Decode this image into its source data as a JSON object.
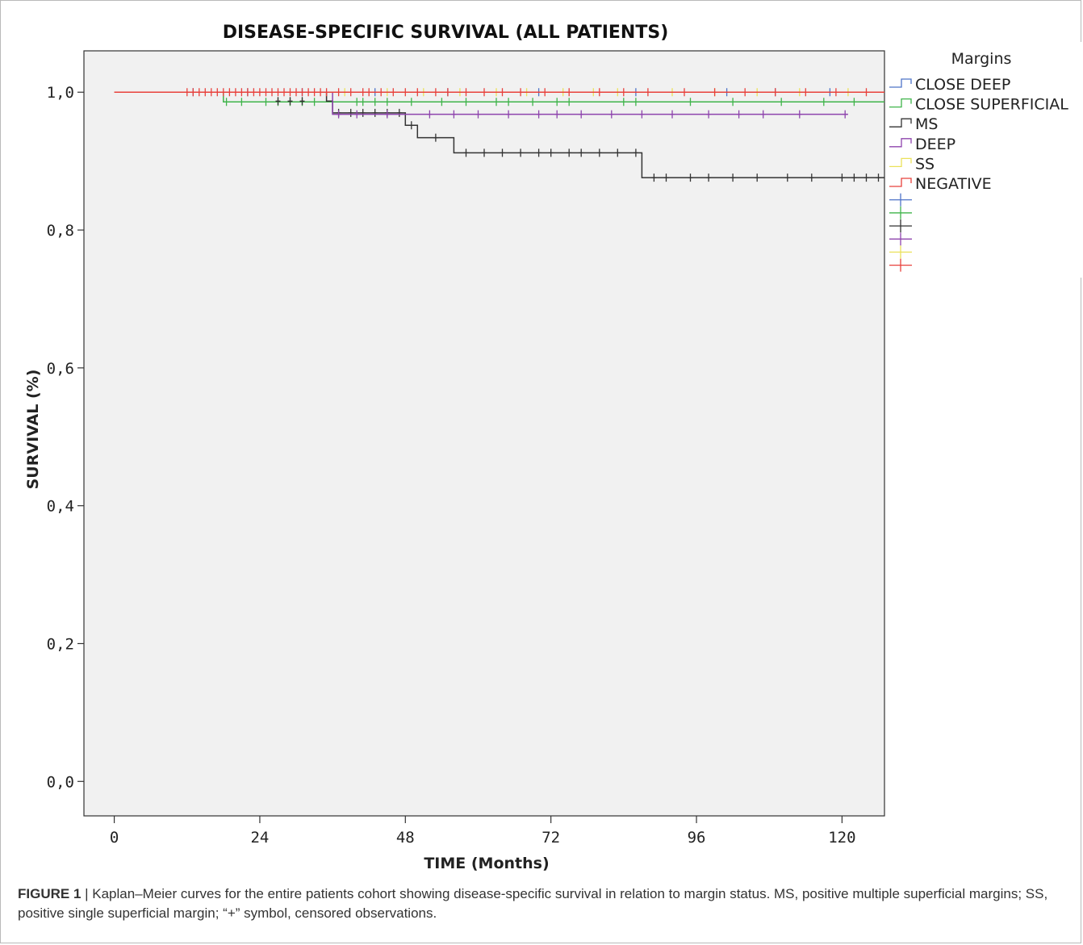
{
  "chart_data": {
    "type": "line",
    "title": "DISEASE-SPECIFIC SURVIVAL (ALL PATIENTS)",
    "xlabel": "TIME (Months)",
    "ylabel": "SURVIVAL (%)",
    "xlim": [
      -5,
      127
    ],
    "ylim": [
      -0.05,
      1.06
    ],
    "x_ticks": [
      0,
      24,
      48,
      72,
      96,
      120
    ],
    "x_tick_labels": [
      "0",
      "24",
      "48",
      "72",
      "96",
      "120"
    ],
    "y_ticks": [
      0.0,
      0.2,
      0.4,
      0.6,
      0.8,
      1.0
    ],
    "y_tick_labels": [
      "0,0",
      "0,2",
      "0,4",
      "0,6",
      "0,8",
      "1,0"
    ],
    "grid": false,
    "legend": {
      "title": "Margins",
      "position": "right"
    },
    "series": [
      {
        "name": "CLOSE DEEP",
        "color": "#4e73c8",
        "steps": [
          [
            0,
            1.0
          ],
          [
            127,
            1.0
          ]
        ],
        "censored": [
          [
            13,
            1.0
          ],
          [
            22,
            1.0
          ],
          [
            31,
            1.0
          ],
          [
            43,
            1.0
          ],
          [
            55,
            1.0
          ],
          [
            70,
            1.0
          ],
          [
            86,
            1.0
          ],
          [
            101,
            1.0
          ],
          [
            109,
            1.0
          ],
          [
            118,
            1.0
          ]
        ]
      },
      {
        "name": "CLOSE SUPERFICIAL",
        "color": "#3fb44a",
        "steps": [
          [
            0,
            1.0
          ],
          [
            18,
            1.0
          ],
          [
            18,
            0.986
          ],
          [
            127,
            0.986
          ]
        ],
        "censored": [
          [
            18.5,
            0.986
          ],
          [
            21,
            0.986
          ],
          [
            25,
            0.986
          ],
          [
            27,
            0.986
          ],
          [
            29,
            0.986
          ],
          [
            31,
            0.986
          ],
          [
            33,
            0.986
          ],
          [
            40,
            0.986
          ],
          [
            41,
            0.986
          ],
          [
            43,
            0.986
          ],
          [
            45,
            0.986
          ],
          [
            49,
            0.986
          ],
          [
            54,
            0.986
          ],
          [
            58,
            0.986
          ],
          [
            63,
            0.986
          ],
          [
            65,
            0.986
          ],
          [
            69,
            0.986
          ],
          [
            73,
            0.986
          ],
          [
            75,
            0.986
          ],
          [
            84,
            0.986
          ],
          [
            86,
            0.986
          ],
          [
            95,
            0.986
          ],
          [
            102,
            0.986
          ],
          [
            110,
            0.986
          ],
          [
            117,
            0.986
          ],
          [
            122,
            0.986
          ]
        ]
      },
      {
        "name": "MS",
        "color": "#333333",
        "steps": [
          [
            0,
            1.0
          ],
          [
            35,
            1.0
          ],
          [
            35,
            0.987
          ],
          [
            36,
            0.987
          ],
          [
            36,
            0.97
          ],
          [
            48,
            0.97
          ],
          [
            48,
            0.952
          ],
          [
            50,
            0.952
          ],
          [
            50,
            0.934
          ],
          [
            56,
            0.934
          ],
          [
            56,
            0.912
          ],
          [
            87,
            0.912
          ],
          [
            87,
            0.876
          ],
          [
            127,
            0.876
          ]
        ],
        "censored": [
          [
            27,
            0.987
          ],
          [
            29,
            0.987
          ],
          [
            31,
            0.987
          ],
          [
            37,
            0.97
          ],
          [
            39,
            0.97
          ],
          [
            41,
            0.97
          ],
          [
            43,
            0.97
          ],
          [
            45,
            0.97
          ],
          [
            47,
            0.97
          ],
          [
            49,
            0.952
          ],
          [
            53,
            0.934
          ],
          [
            58,
            0.912
          ],
          [
            61,
            0.912
          ],
          [
            64,
            0.912
          ],
          [
            67,
            0.912
          ],
          [
            70,
            0.912
          ],
          [
            72,
            0.912
          ],
          [
            75,
            0.912
          ],
          [
            77,
            0.912
          ],
          [
            80,
            0.912
          ],
          [
            83,
            0.912
          ],
          [
            86,
            0.912
          ],
          [
            89,
            0.876
          ],
          [
            91,
            0.876
          ],
          [
            95,
            0.876
          ],
          [
            98,
            0.876
          ],
          [
            102,
            0.876
          ],
          [
            106,
            0.876
          ],
          [
            111,
            0.876
          ],
          [
            115,
            0.876
          ],
          [
            120,
            0.876
          ],
          [
            122,
            0.876
          ],
          [
            124,
            0.876
          ],
          [
            126,
            0.876
          ]
        ]
      },
      {
        "name": "DEEP",
        "color": "#8e44ad",
        "steps": [
          [
            0,
            1.0
          ],
          [
            36,
            1.0
          ],
          [
            36,
            0.968
          ],
          [
            121,
            0.968
          ]
        ],
        "censored": [
          [
            37,
            0.968
          ],
          [
            40,
            0.968
          ],
          [
            45,
            0.968
          ],
          [
            52,
            0.968
          ],
          [
            56,
            0.968
          ],
          [
            60,
            0.968
          ],
          [
            65,
            0.968
          ],
          [
            70,
            0.968
          ],
          [
            73,
            0.968
          ],
          [
            77,
            0.968
          ],
          [
            82,
            0.968
          ],
          [
            87,
            0.968
          ],
          [
            92,
            0.968
          ],
          [
            98,
            0.968
          ],
          [
            103,
            0.968
          ],
          [
            107,
            0.968
          ],
          [
            113,
            0.968
          ],
          [
            120.5,
            0.968
          ]
        ]
      },
      {
        "name": "SS",
        "color": "#ebe15a",
        "steps": [
          [
            0,
            1.0
          ],
          [
            127,
            1.0
          ]
        ],
        "censored": [
          [
            38,
            1.0
          ],
          [
            45,
            1.0
          ],
          [
            51,
            1.0
          ],
          [
            57,
            1.0
          ],
          [
            63,
            1.0
          ],
          [
            68,
            1.0
          ],
          [
            74,
            1.0
          ],
          [
            79,
            1.0
          ],
          [
            83,
            1.0
          ],
          [
            92,
            1.0
          ],
          [
            99,
            1.0
          ],
          [
            106,
            1.0
          ],
          [
            113,
            1.0
          ],
          [
            121,
            1.0
          ]
        ]
      },
      {
        "name": "NEGATIVE",
        "color": "#e8413c",
        "steps": [
          [
            0,
            1.0
          ],
          [
            127,
            1.0
          ]
        ],
        "censored": [
          [
            12,
            1.0
          ],
          [
            13,
            1.0
          ],
          [
            14,
            1.0
          ],
          [
            15,
            1.0
          ],
          [
            16,
            1.0
          ],
          [
            17,
            1.0
          ],
          [
            18,
            1.0
          ],
          [
            19,
            1.0
          ],
          [
            20,
            1.0
          ],
          [
            21,
            1.0
          ],
          [
            22,
            1.0
          ],
          [
            23,
            1.0
          ],
          [
            24,
            1.0
          ],
          [
            25,
            1.0
          ],
          [
            26,
            1.0
          ],
          [
            27,
            1.0
          ],
          [
            28,
            1.0
          ],
          [
            29,
            1.0
          ],
          [
            30,
            1.0
          ],
          [
            31,
            1.0
          ],
          [
            32,
            1.0
          ],
          [
            33,
            1.0
          ],
          [
            34,
            1.0
          ],
          [
            35,
            1.0
          ],
          [
            37,
            1.0
          ],
          [
            39,
            1.0
          ],
          [
            41,
            1.0
          ],
          [
            42,
            1.0
          ],
          [
            44,
            1.0
          ],
          [
            46,
            1.0
          ],
          [
            48,
            1.0
          ],
          [
            50,
            1.0
          ],
          [
            53,
            1.0
          ],
          [
            55,
            1.0
          ],
          [
            58,
            1.0
          ],
          [
            61,
            1.0
          ],
          [
            64,
            1.0
          ],
          [
            67,
            1.0
          ],
          [
            71,
            1.0
          ],
          [
            75,
            1.0
          ],
          [
            80,
            1.0
          ],
          [
            84,
            1.0
          ],
          [
            88,
            1.0
          ],
          [
            94,
            1.0
          ],
          [
            99,
            1.0
          ],
          [
            104,
            1.0
          ],
          [
            109,
            1.0
          ],
          [
            114,
            1.0
          ],
          [
            119,
            1.0
          ],
          [
            124,
            1.0
          ]
        ]
      }
    ]
  },
  "caption": {
    "label": "FIGURE 1",
    "text": " | Kaplan–Meier curves for the entire patients cohort showing disease-specific survival in relation to margin status. MS, positive multiple superficial margins; SS, positive single superficial margin; “+” symbol, censored observations."
  }
}
